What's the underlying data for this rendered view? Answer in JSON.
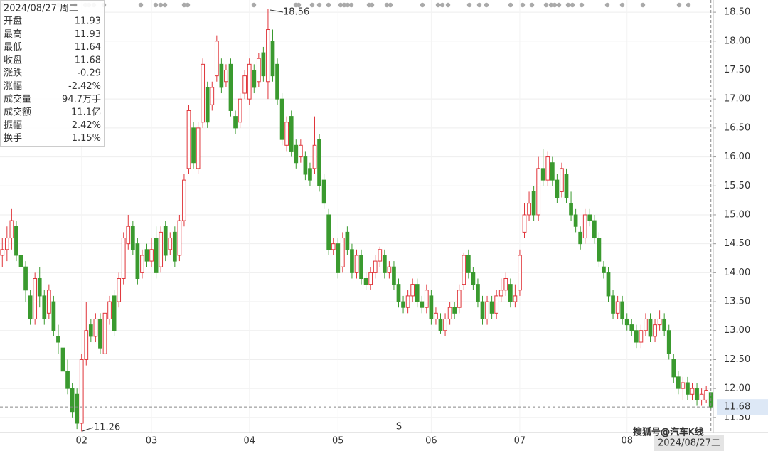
{
  "chart_data": {
    "type": "candlestick",
    "up_color": "#e0353a",
    "down_color": "#3a9a2f",
    "candles": [
      [
        14.3,
        14.6,
        14.1,
        14.4
      ],
      [
        14.4,
        14.8,
        14.2,
        14.6
      ],
      [
        14.6,
        15.1,
        14.4,
        14.9
      ],
      [
        14.8,
        14.9,
        14.2,
        14.3
      ],
      [
        14.3,
        14.4,
        13.9,
        14.1
      ],
      [
        14.1,
        14.2,
        13.5,
        13.7
      ],
      [
        13.6,
        13.7,
        13.1,
        13.2
      ],
      [
        13.2,
        14.0,
        13.1,
        13.9
      ],
      [
        13.9,
        14.1,
        13.4,
        13.6
      ],
      [
        13.6,
        13.7,
        13.1,
        13.2
      ],
      [
        13.3,
        13.8,
        13.2,
        13.7
      ],
      [
        13.5,
        13.6,
        12.9,
        13.0
      ],
      [
        12.9,
        13.1,
        12.6,
        12.8
      ],
      [
        12.7,
        12.8,
        12.2,
        12.3
      ],
      [
        12.3,
        12.5,
        11.9,
        12.0
      ],
      [
        12.0,
        12.1,
        11.5,
        11.6
      ],
      [
        11.9,
        12.0,
        11.3,
        11.4
      ],
      [
        11.4,
        12.6,
        11.26,
        12.5
      ],
      [
        12.5,
        13.5,
        12.4,
        13.0
      ],
      [
        13.1,
        13.2,
        12.8,
        12.9
      ],
      [
        12.9,
        13.3,
        12.8,
        13.2
      ],
      [
        13.2,
        13.3,
        12.6,
        12.7
      ],
      [
        12.6,
        13.4,
        12.5,
        13.3
      ],
      [
        13.2,
        13.6,
        13.1,
        13.5
      ],
      [
        13.6,
        13.7,
        12.9,
        13.0
      ],
      [
        13.5,
        14.0,
        13.4,
        13.9
      ],
      [
        13.9,
        14.7,
        13.8,
        14.6
      ],
      [
        14.5,
        15.0,
        14.4,
        14.8
      ],
      [
        14.8,
        14.9,
        14.3,
        14.4
      ],
      [
        14.5,
        14.6,
        13.8,
        13.9
      ],
      [
        14.0,
        14.4,
        13.9,
        14.3
      ],
      [
        14.4,
        14.5,
        14.1,
        14.2
      ],
      [
        14.2,
        14.6,
        14.1,
        14.4
      ],
      [
        14.6,
        14.8,
        13.9,
        14.0
      ],
      [
        14.1,
        14.8,
        14.0,
        14.7
      ],
      [
        14.8,
        14.9,
        14.2,
        14.3
      ],
      [
        14.4,
        14.7,
        14.3,
        14.6
      ],
      [
        14.7,
        14.8,
        14.1,
        14.2
      ],
      [
        14.3,
        15.0,
        14.2,
        14.9
      ],
      [
        14.9,
        15.7,
        14.8,
        15.6
      ],
      [
        15.8,
        16.9,
        15.7,
        16.8
      ],
      [
        16.5,
        16.6,
        15.8,
        15.9
      ],
      [
        15.8,
        16.6,
        15.7,
        16.5
      ],
      [
        16.6,
        17.7,
        16.5,
        17.6
      ],
      [
        17.2,
        17.3,
        16.5,
        16.6
      ],
      [
        16.9,
        17.3,
        16.8,
        17.2
      ],
      [
        17.4,
        18.1,
        17.3,
        18.0
      ],
      [
        17.6,
        17.7,
        17.1,
        17.2
      ],
      [
        17.3,
        17.6,
        17.2,
        17.5
      ],
      [
        17.6,
        17.7,
        16.7,
        16.8
      ],
      [
        16.7,
        16.8,
        16.4,
        16.5
      ],
      [
        16.6,
        17.1,
        16.5,
        17.0
      ],
      [
        17.1,
        17.5,
        17.0,
        17.4
      ],
      [
        17.0,
        17.7,
        16.9,
        17.6
      ],
      [
        17.5,
        17.6,
        17.1,
        17.2
      ],
      [
        17.3,
        17.8,
        17.2,
        17.7
      ],
      [
        17.8,
        17.9,
        17.3,
        17.4
      ],
      [
        17.3,
        18.56,
        17.0,
        18.2
      ],
      [
        18.0,
        18.2,
        17.3,
        17.4
      ],
      [
        17.6,
        17.7,
        16.9,
        17.0
      ],
      [
        17.0,
        17.1,
        16.2,
        16.3
      ],
      [
        16.2,
        16.7,
        16.1,
        16.6
      ],
      [
        16.7,
        16.8,
        16.0,
        16.1
      ],
      [
        16.2,
        16.3,
        15.8,
        15.9
      ],
      [
        16.0,
        16.3,
        15.9,
        16.2
      ],
      [
        16.0,
        16.1,
        15.6,
        15.7
      ],
      [
        15.8,
        15.9,
        15.5,
        15.6
      ],
      [
        15.8,
        16.7,
        15.7,
        16.2
      ],
      [
        16.3,
        16.4,
        15.4,
        15.5
      ],
      [
        15.6,
        15.7,
        15.1,
        15.2
      ],
      [
        15.0,
        15.1,
        14.3,
        14.4
      ],
      [
        14.4,
        14.6,
        14.3,
        14.5
      ],
      [
        14.5,
        14.6,
        13.9,
        14.0
      ],
      [
        14.1,
        14.7,
        14.0,
        14.6
      ],
      [
        14.7,
        14.8,
        14.3,
        14.4
      ],
      [
        14.4,
        14.5,
        13.9,
        14.0
      ],
      [
        14.0,
        14.4,
        13.9,
        14.3
      ],
      [
        14.3,
        14.4,
        13.8,
        13.9
      ],
      [
        13.9,
        14.0,
        13.7,
        13.8
      ],
      [
        13.8,
        14.1,
        13.7,
        14.0
      ],
      [
        14.0,
        14.3,
        13.9,
        14.2
      ],
      [
        14.2,
        14.45,
        14.1,
        14.4
      ],
      [
        14.3,
        14.4,
        13.9,
        14.0
      ],
      [
        14.0,
        14.2,
        13.9,
        14.1
      ],
      [
        14.1,
        14.2,
        13.7,
        13.8
      ],
      [
        13.8,
        13.9,
        13.4,
        13.5
      ],
      [
        13.5,
        13.6,
        13.3,
        13.4
      ],
      [
        13.4,
        13.7,
        13.3,
        13.6
      ],
      [
        13.6,
        13.9,
        13.5,
        13.8
      ],
      [
        13.8,
        13.9,
        13.4,
        13.5
      ],
      [
        13.5,
        13.6,
        13.3,
        13.4
      ],
      [
        13.4,
        13.8,
        13.3,
        13.7
      ],
      [
        13.6,
        13.7,
        13.1,
        13.2
      ],
      [
        13.2,
        13.4,
        13.1,
        13.3
      ],
      [
        13.2,
        13.3,
        12.95,
        13.0
      ],
      [
        13.0,
        13.3,
        12.9,
        13.2
      ],
      [
        13.2,
        13.5,
        13.1,
        13.4
      ],
      [
        13.4,
        13.5,
        13.2,
        13.3
      ],
      [
        13.4,
        13.8,
        13.3,
        13.7
      ],
      [
        13.8,
        14.35,
        13.7,
        14.3
      ],
      [
        14.3,
        14.4,
        13.9,
        14.0
      ],
      [
        14.0,
        14.1,
        13.7,
        13.8
      ],
      [
        13.8,
        13.9,
        13.4,
        13.5
      ],
      [
        13.5,
        13.6,
        13.1,
        13.2
      ],
      [
        13.2,
        13.6,
        13.1,
        13.5
      ],
      [
        13.5,
        13.6,
        13.2,
        13.3
      ],
      [
        13.3,
        13.7,
        13.2,
        13.6
      ],
      [
        13.6,
        13.9,
        13.5,
        13.7
      ],
      [
        13.7,
        14.0,
        13.6,
        13.9
      ],
      [
        13.8,
        13.9,
        13.4,
        13.5
      ],
      [
        13.5,
        13.8,
        13.4,
        13.6
      ],
      [
        13.7,
        14.4,
        13.6,
        14.3
      ],
      [
        14.7,
        15.2,
        14.6,
        15.0
      ],
      [
        15.0,
        15.4,
        14.9,
        15.2
      ],
      [
        15.4,
        15.5,
        14.9,
        15.0
      ],
      [
        15.0,
        16.0,
        14.9,
        15.8
      ],
      [
        15.8,
        16.13,
        15.5,
        15.6
      ],
      [
        15.6,
        16.1,
        15.5,
        16.0
      ],
      [
        15.9,
        16.0,
        15.5,
        15.6
      ],
      [
        15.6,
        15.7,
        15.2,
        15.3
      ],
      [
        15.4,
        15.9,
        15.3,
        15.8
      ],
      [
        15.7,
        15.8,
        15.2,
        15.3
      ],
      [
        15.2,
        15.4,
        14.9,
        15.0
      ],
      [
        15.0,
        15.1,
        14.7,
        14.8
      ],
      [
        14.7,
        14.8,
        14.4,
        14.5
      ],
      [
        14.6,
        15.1,
        14.5,
        15.0
      ],
      [
        15.0,
        15.1,
        14.8,
        14.9
      ],
      [
        14.9,
        15.0,
        14.5,
        14.6
      ],
      [
        14.6,
        14.7,
        14.1,
        14.2
      ],
      [
        14.1,
        14.2,
        13.9,
        14.0
      ],
      [
        14.0,
        14.1,
        13.5,
        13.6
      ],
      [
        13.6,
        13.7,
        13.2,
        13.3
      ],
      [
        13.3,
        13.6,
        13.2,
        13.5
      ],
      [
        13.5,
        13.6,
        13.1,
        13.2
      ],
      [
        13.2,
        13.3,
        13.0,
        13.1
      ],
      [
        13.1,
        13.2,
        12.9,
        13.0
      ],
      [
        13.0,
        13.1,
        12.7,
        12.8
      ],
      [
        12.8,
        13.1,
        12.7,
        13.0
      ],
      [
        13.0,
        13.3,
        12.9,
        13.2
      ],
      [
        13.2,
        13.3,
        12.8,
        12.9
      ],
      [
        12.9,
        13.2,
        12.8,
        13.1
      ],
      [
        13.1,
        13.35,
        13.0,
        13.2
      ],
      [
        13.2,
        13.3,
        12.9,
        13.0
      ],
      [
        13.0,
        13.1,
        12.5,
        12.6
      ],
      [
        12.5,
        12.6,
        12.1,
        12.2
      ],
      [
        12.2,
        12.3,
        11.9,
        12.0
      ],
      [
        12.0,
        12.2,
        11.8,
        12.1
      ],
      [
        12.1,
        12.2,
        11.8,
        11.9
      ],
      [
        11.9,
        12.1,
        11.8,
        12.0
      ],
      [
        12.0,
        12.1,
        11.7,
        11.8
      ],
      [
        11.8,
        12.0,
        11.7,
        11.9
      ],
      [
        11.8,
        12.05,
        11.75,
        11.97
      ],
      [
        11.93,
        11.93,
        11.64,
        11.68
      ]
    ],
    "ylim": [
      11.24,
      18.71
    ],
    "yticks": [
      {
        "value": 11.5,
        "label": "11.50"
      },
      {
        "value": 12,
        "label": "12.00"
      },
      {
        "value": 12.5,
        "label": "12.50"
      },
      {
        "value": 13,
        "label": "13.00"
      },
      {
        "value": 13.5,
        "label": "13.50"
      },
      {
        "value": 14,
        "label": "14.00"
      },
      {
        "value": 14.5,
        "label": "14.50"
      },
      {
        "value": 15,
        "label": "15.00"
      },
      {
        "value": 15.5,
        "label": "15.50"
      },
      {
        "value": 16,
        "label": "16.00"
      },
      {
        "value": 16.5,
        "label": "16.50"
      },
      {
        "value": 17,
        "label": "17.00"
      },
      {
        "value": 17.5,
        "label": "17.50"
      },
      {
        "value": 18,
        "label": "18.00"
      },
      {
        "value": 18.5,
        "label": "18.50"
      }
    ],
    "xticks": [
      {
        "value": 17,
        "label": "02"
      },
      {
        "value": 32,
        "label": "03"
      },
      {
        "value": 53,
        "label": "04"
      },
      {
        "value": 72,
        "label": "05"
      },
      {
        "value": 92,
        "label": "06"
      },
      {
        "value": 111,
        "label": "07"
      },
      {
        "value": 134,
        "label": "08"
      }
    ],
    "grid": true,
    "price_line": 11.68,
    "annotations": [
      "18.56",
      "11.26"
    ],
    "marker": "S",
    "date_label": "2024/08/27二",
    "watermark": "搜狐号@汽车K线",
    "info": {
      "date": "2024/08/27 周二",
      "rows": [
        {
          "label": "开盘",
          "value": "11.93",
          "color": "#3a9a2f"
        },
        {
          "label": "最高",
          "value": "11.93",
          "color": "#3a9a2f"
        },
        {
          "label": "最低",
          "value": "11.64",
          "color": "#3a9a2f"
        },
        {
          "label": "收盘",
          "value": "11.68",
          "color": "#3a9a2f"
        },
        {
          "label": "涨跌",
          "value": "-0.29",
          "color": "#3a9a2f"
        },
        {
          "label": "涨幅",
          "value": "-2.42%",
          "color": "#3a9a2f"
        },
        {
          "label": "成交量",
          "value": "94.7万手",
          "color": "#333333"
        },
        {
          "label": "成交额",
          "value": "11.1亿",
          "color": "#333333"
        },
        {
          "label": "振幅",
          "value": "2.42%",
          "color": "#333333"
        },
        {
          "label": "换手",
          "value": "1.15%",
          "color": "#333333"
        }
      ]
    }
  }
}
